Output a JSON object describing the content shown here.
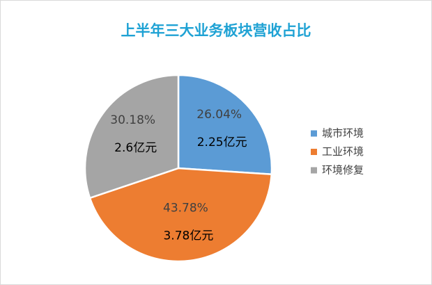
{
  "chart_data": {
    "type": "pie",
    "title": "上半年三大业务板块营收占比",
    "categories": [
      "城市环境",
      "工业环境",
      "环境修复"
    ],
    "values": [
      26.04,
      43.78,
      30.18
    ],
    "value_labels": [
      "26.04%",
      "43.78%",
      "30.18%"
    ],
    "amount_labels": [
      "2.25亿元",
      "3.78亿元",
      "2.6亿元"
    ],
    "colors": [
      "#5b9bd5",
      "#ed7d31",
      "#a5a5a5"
    ],
    "legend": "right"
  }
}
